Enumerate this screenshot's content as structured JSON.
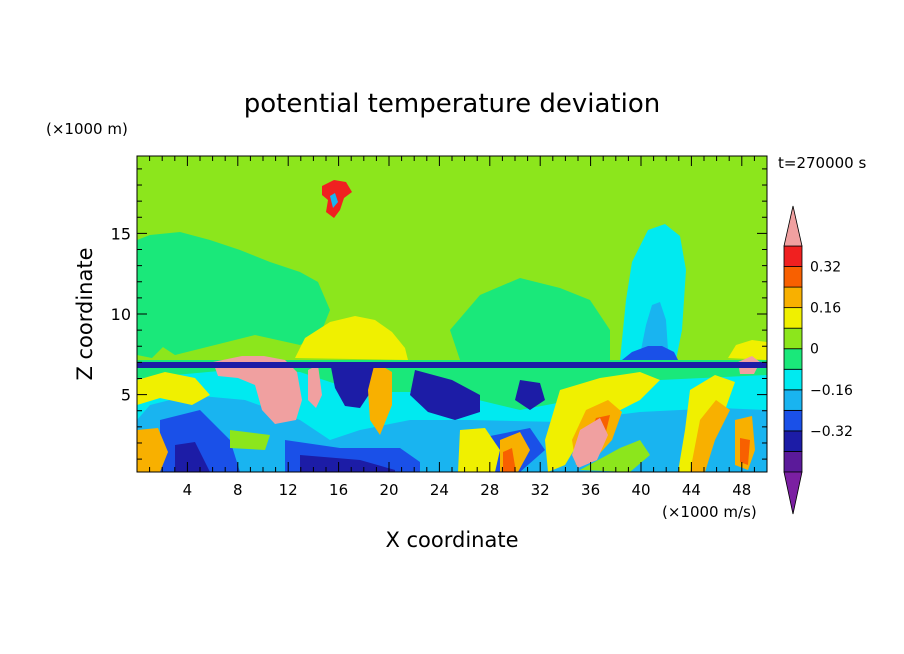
{
  "chart_data": {
    "type": "heatmap",
    "title": "potential temperature deviation",
    "time_label": "t=270000 s",
    "xlabel": "X coordinate",
    "ylabel": "Z coordinate",
    "x_unit": "(×1000 m/s)",
    "y_unit": "(×1000 m)",
    "xlim": [
      0,
      50
    ],
    "ylim": [
      0.2,
      19.8
    ],
    "x_ticks": [
      4,
      8,
      12,
      16,
      20,
      24,
      28,
      32,
      36,
      40,
      44,
      48
    ],
    "y_ticks": [
      5,
      10,
      15
    ],
    "colorbar": {
      "boundaries": [
        -0.48,
        -0.4,
        -0.32,
        -0.24,
        -0.16,
        -0.08,
        0,
        0.08,
        0.16,
        0.24,
        0.32,
        0.4
      ],
      "labels": [
        -0.32,
        -0.16,
        0,
        0.16,
        0.32
      ],
      "colors": [
        "#7b1fa2",
        "#5b1a9a",
        "#1c1ca6",
        "#1a50e8",
        "#19b4f0",
        "#00eaf0",
        "#1ae87a",
        "#8ce61c",
        "#f0f000",
        "#f8b000",
        "#f86000",
        "#f02020",
        "#f0a0a0"
      ],
      "extend": "both"
    },
    "background_value": 0.04
  }
}
